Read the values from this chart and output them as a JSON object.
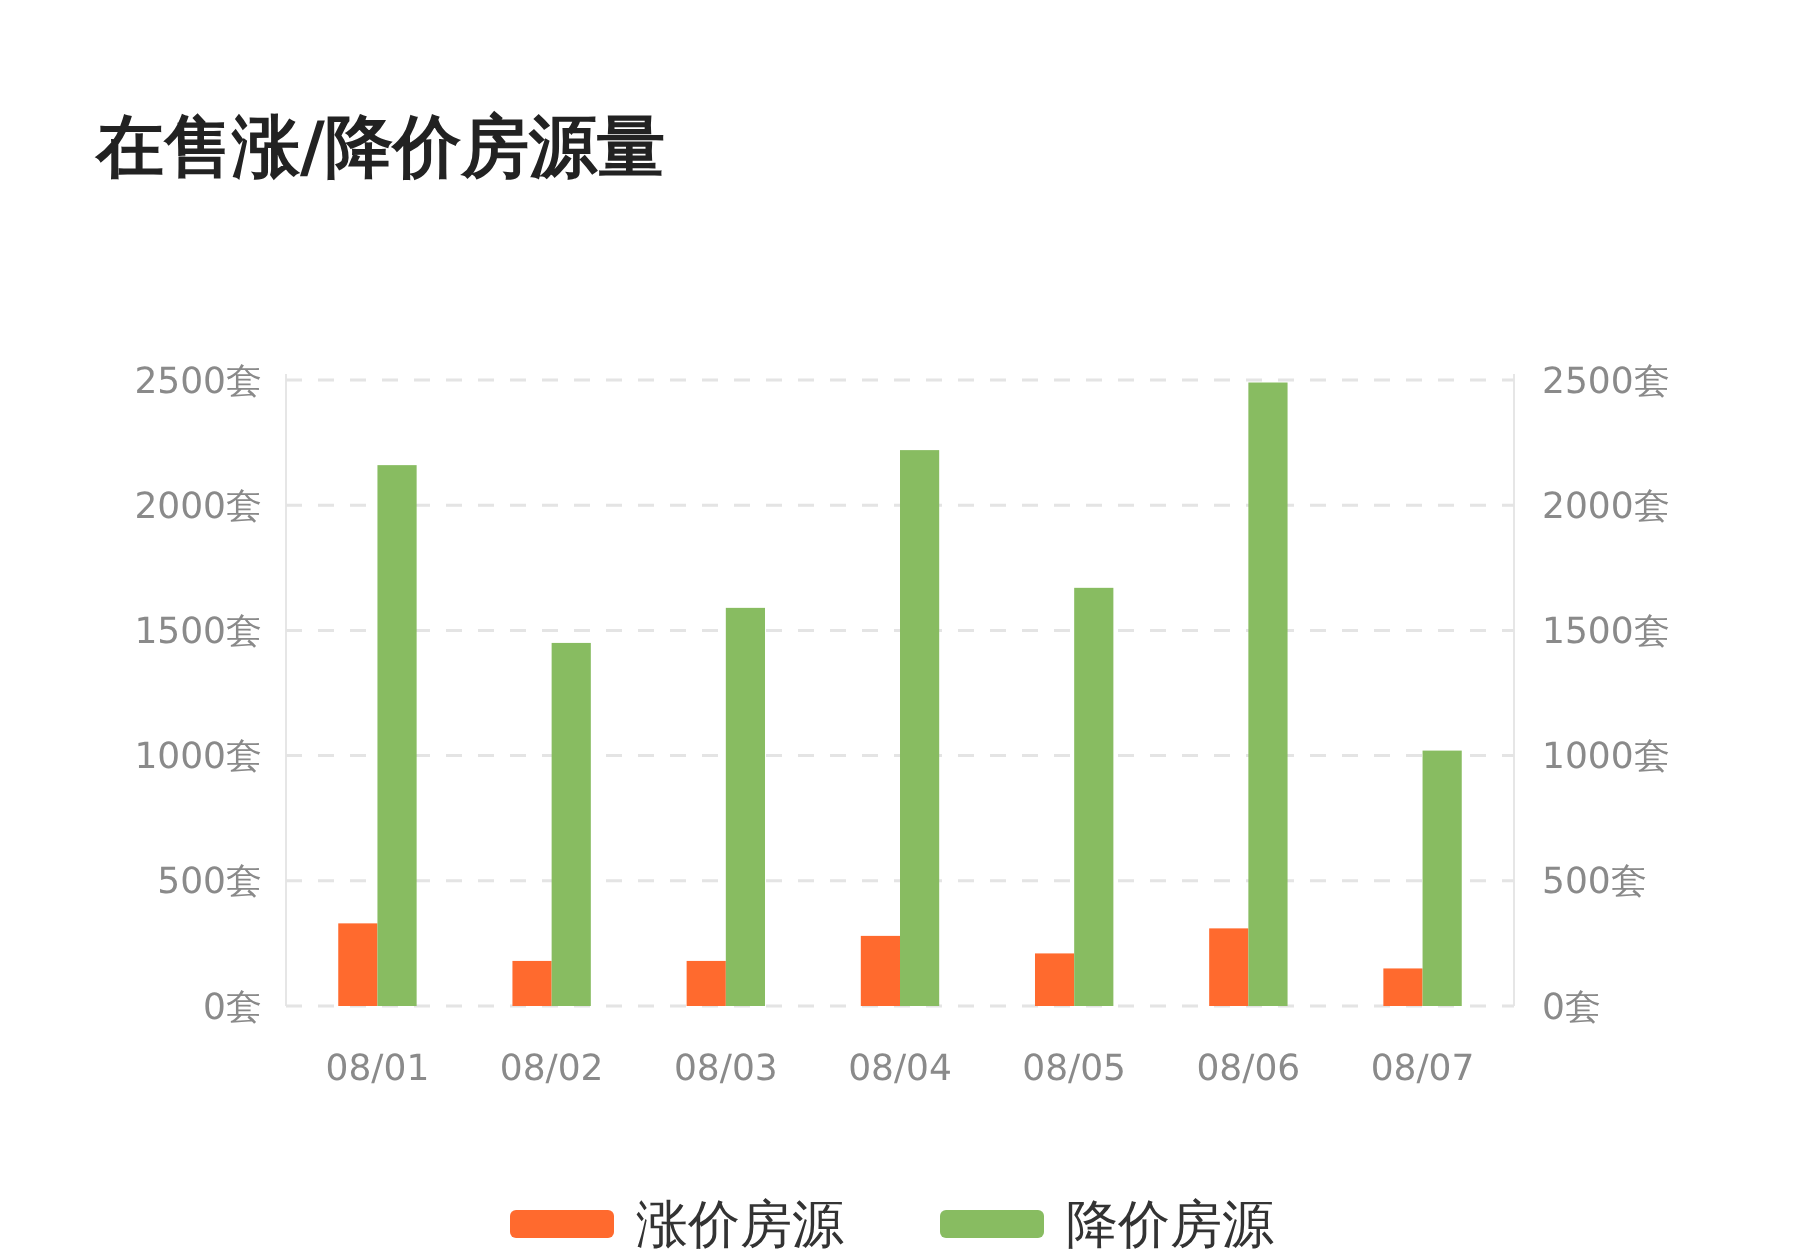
{
  "chart_data": {
    "type": "bar",
    "title": "在售涨/降价房源量",
    "categories": [
      "08/01",
      "08/02",
      "08/03",
      "08/04",
      "08/05",
      "08/06",
      "08/07"
    ],
    "series": [
      {
        "name": "涨价房源",
        "color": "#ff6a2e",
        "values": [
          330,
          180,
          180,
          280,
          210,
          310,
          150
        ]
      },
      {
        "name": "降价房源",
        "color": "#88bc61",
        "values": [
          2160,
          1450,
          1590,
          2220,
          1670,
          2490,
          1020
        ]
      }
    ],
    "ylim": [
      0,
      2500
    ],
    "yticks": [
      {
        "value": 0,
        "label": "0套"
      },
      {
        "value": 500,
        "label": "500套"
      },
      {
        "value": 1000,
        "label": "1000套"
      },
      {
        "value": 1500,
        "label": "1500套"
      },
      {
        "value": 2000,
        "label": "2000套"
      },
      {
        "value": 2500,
        "label": "2500套"
      }
    ],
    "y2lim": [
      0,
      2500
    ],
    "y2ticks": [
      {
        "value": 0,
        "label": "0套"
      },
      {
        "value": 500,
        "label": "500套"
      },
      {
        "value": 1000,
        "label": "1000套"
      },
      {
        "value": 1500,
        "label": "1500套"
      },
      {
        "value": 2000,
        "label": "2000套"
      },
      {
        "value": 2500,
        "label": "2500套"
      }
    ],
    "grid": "y",
    "legend": "bottom"
  }
}
